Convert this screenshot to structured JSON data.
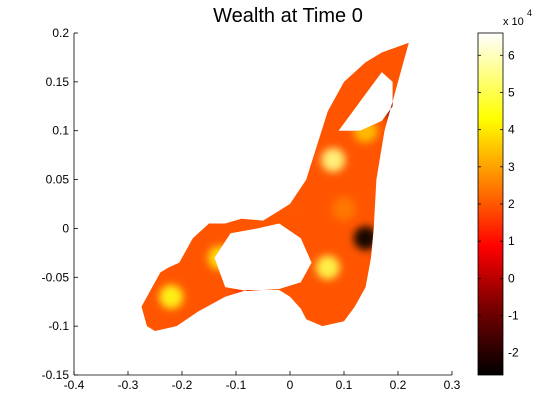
{
  "chart_data": {
    "type": "heatmap",
    "title": "Wealth at Time 0",
    "xlabel": "",
    "ylabel": "",
    "xlim": [
      -0.4,
      0.3
    ],
    "ylim": [
      -0.15,
      0.2
    ],
    "x_ticks": [
      -0.4,
      -0.3,
      -0.2,
      -0.1,
      0,
      0.1,
      0.2,
      0.3
    ],
    "x_tick_labels": [
      "-0.4",
      "-0.3",
      "-0.2",
      "-0.1",
      "0",
      "0.1",
      "0.2",
      "0.3"
    ],
    "y_ticks": [
      -0.15,
      -0.1,
      -0.05,
      0,
      0.05,
      0.1,
      0.15,
      0.2
    ],
    "y_tick_labels": [
      "-0.15",
      "-0.1",
      "-0.05",
      "0",
      "0.05",
      "0.1",
      "0.15",
      "0.2"
    ],
    "grid": false,
    "colormap": "hot",
    "colorbar": {
      "range": [
        -2.6,
        6.6
      ],
      "ticks": [
        -2,
        -1,
        0,
        1,
        2,
        3,
        4,
        5,
        6
      ],
      "tick_labels": [
        "-2",
        "-1",
        "0",
        "1",
        "2",
        "3",
        "4",
        "5",
        "6"
      ],
      "multiplier": "x 10",
      "exponent": "4"
    },
    "region_outline": [
      [
        0.22,
        0.19
      ],
      [
        0.2,
        0.15
      ],
      [
        0.19,
        0.13
      ],
      [
        0.175,
        0.1
      ],
      [
        0.16,
        0.05
      ],
      [
        0.155,
        0.0
      ],
      [
        0.15,
        -0.03
      ],
      [
        0.14,
        -0.06
      ],
      [
        0.12,
        -0.08
      ],
      [
        0.1,
        -0.095
      ],
      [
        0.06,
        -0.1
      ],
      [
        0.03,
        -0.093
      ],
      [
        0.02,
        -0.082
      ],
      [
        0.0,
        -0.07
      ],
      [
        -0.02,
        -0.063
      ],
      [
        -0.08,
        -0.063
      ],
      [
        -0.12,
        -0.07
      ],
      [
        -0.17,
        -0.085
      ],
      [
        -0.21,
        -0.1
      ],
      [
        -0.25,
        -0.105
      ],
      [
        -0.265,
        -0.1
      ],
      [
        -0.275,
        -0.08
      ],
      [
        -0.26,
        -0.065
      ],
      [
        -0.24,
        -0.045
      ],
      [
        -0.225,
        -0.04
      ],
      [
        -0.205,
        -0.035
      ],
      [
        -0.18,
        -0.01
      ],
      [
        -0.15,
        0.005
      ],
      [
        -0.12,
        0.005
      ],
      [
        -0.09,
        0.01
      ],
      [
        -0.05,
        0.008
      ],
      [
        -0.02,
        0.018
      ],
      [
        0.0,
        0.025
      ],
      [
        0.03,
        0.05
      ],
      [
        0.05,
        0.085
      ],
      [
        0.07,
        0.12
      ],
      [
        0.1,
        0.15
      ],
      [
        0.14,
        0.17
      ],
      [
        0.17,
        0.18
      ]
    ],
    "hole_outlines": [
      [
        [
          0.09,
          0.1
        ],
        [
          0.13,
          0.13
        ],
        [
          0.17,
          0.16
        ],
        [
          0.19,
          0.15
        ],
        [
          0.19,
          0.125
        ],
        [
          0.17,
          0.11
        ],
        [
          0.13,
          0.1
        ]
      ],
      [
        [
          -0.14,
          -0.03
        ],
        [
          -0.11,
          -0.005
        ],
        [
          -0.06,
          0.0
        ],
        [
          -0.02,
          0.005
        ],
        [
          0.02,
          -0.01
        ],
        [
          0.04,
          -0.035
        ],
        [
          0.02,
          -0.055
        ],
        [
          -0.02,
          -0.062
        ],
        [
          -0.08,
          -0.064
        ],
        [
          -0.12,
          -0.06
        ]
      ]
    ],
    "hotspots": [
      {
        "x": 0.08,
        "y": 0.07,
        "value": 5.5
      },
      {
        "x": 0.07,
        "y": -0.04,
        "value": 5.0
      },
      {
        "x": -0.22,
        "y": -0.07,
        "value": 4.5
      },
      {
        "x": -0.13,
        "y": -0.03,
        "value": 4.0
      },
      {
        "x": 0.14,
        "y": 0.1,
        "value": 3.5
      },
      {
        "x": 0.14,
        "y": -0.01,
        "value": -2.5
      },
      {
        "x": 0.2,
        "y": 0.12,
        "value": -1.0
      },
      {
        "x": 0.0,
        "y": 0.02,
        "value": 2.0
      },
      {
        "x": 0.1,
        "y": 0.02,
        "value": 2.5
      },
      {
        "x": -0.08,
        "y": -0.06,
        "value": 1.5
      }
    ],
    "typical_value": 2.0
  }
}
